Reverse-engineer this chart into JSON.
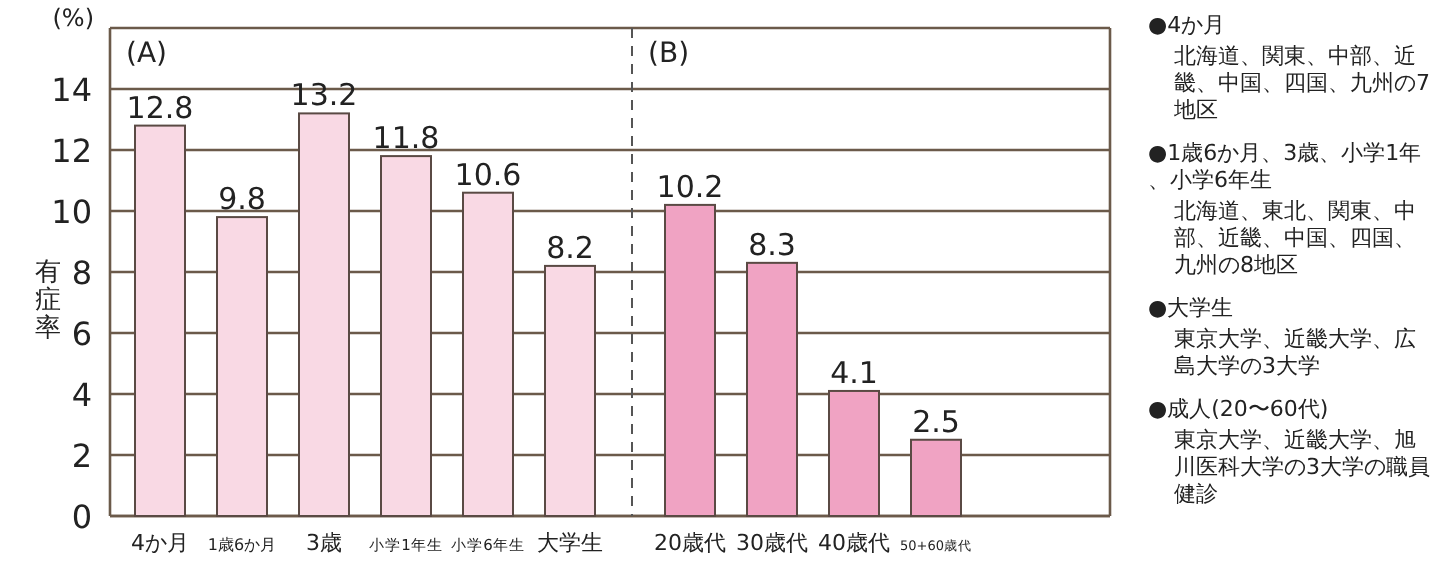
{
  "chart_data": [
    {
      "type": "bar",
      "title": "(A)",
      "ylabel": "有症率",
      "annotations": [
        "(%)"
      ],
      "categories": [
        "4か月",
        "1歳6か月",
        "3歳",
        "小学1年生",
        "小学6年生",
        "大学生"
      ],
      "series": [
        {
          "color": "#f9d9e4",
          "values": [
            12.8,
            9.8,
            13.2,
            11.8,
            10.6,
            8.2
          ]
        }
      ],
      "ylim": [
        0,
        16
      ],
      "yticks": [
        0,
        2,
        4,
        6,
        8,
        10,
        12,
        14
      ],
      "grid": "y",
      "data_labels": true
    },
    {
      "type": "bar",
      "title": "(B)",
      "categories": [
        "20歳代",
        "30歳代",
        "40歳代",
        "50+60歳代"
      ],
      "series": [
        {
          "color": "#f0a3c3",
          "values": [
            10.2,
            8.3,
            4.1,
            2.5
          ]
        }
      ],
      "ylim": [
        0,
        16
      ],
      "yticks": [
        0,
        2,
        4,
        6,
        8,
        10,
        12,
        14
      ],
      "tick_labels": "x",
      "grid": "y",
      "data_labels": true
    },
    {
      "type": "other",
      "annotations": [
        "●4か月",
        "北海道、関東、中部、近畿、中国、四国、九州の7地区",
        "●1歳6か月、3歳、小学1年、小学6年生",
        "北海道、東北、関東、中部、近畿、中国、四国、九州の8地区",
        "●大学生",
        "東京大学、近畿大学、広島大学の3大学",
        "●成人(20〜60代)",
        "東京大学、近畿大学、旭川医科大学の3大学の職員健診"
      ]
    }
  ]
}
